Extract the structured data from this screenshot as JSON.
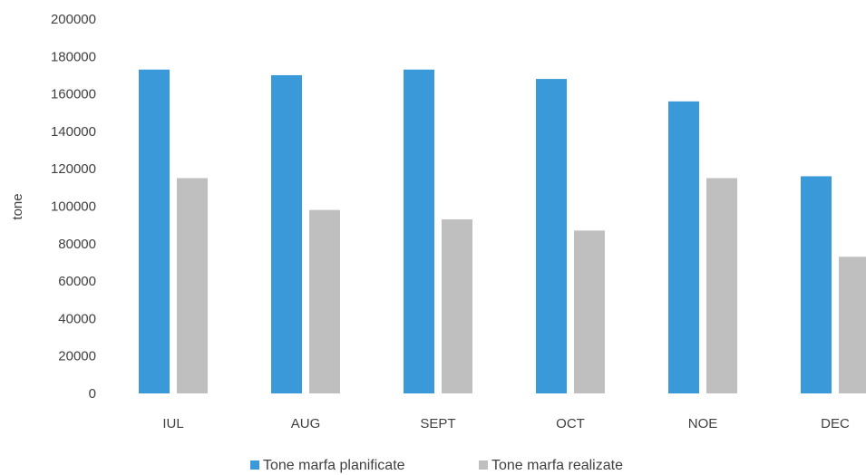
{
  "chart_data": {
    "type": "bar",
    "title": "",
    "xlabel": "",
    "ylabel": "tone",
    "ylim": [
      0,
      200000
    ],
    "yticks": [
      "0",
      "20000",
      "40000",
      "60000",
      "80000",
      "100000",
      "120000",
      "140000",
      "160000",
      "180000",
      "200000"
    ],
    "categories": [
      "IUL",
      "AUG",
      "SEPT",
      "OCT",
      "NOE",
      "DEC"
    ],
    "grid": false,
    "legend_position": "bottom",
    "series": [
      {
        "name": "Tone marfa planificate",
        "color": "#3a9ad9",
        "values": [
          173000,
          170000,
          173000,
          168000,
          156000,
          116000
        ]
      },
      {
        "name": "Tone marfa realizate",
        "color": "#bfbfbf",
        "values": [
          115000,
          98000,
          93000,
          87000,
          115000,
          73000
        ]
      }
    ]
  }
}
